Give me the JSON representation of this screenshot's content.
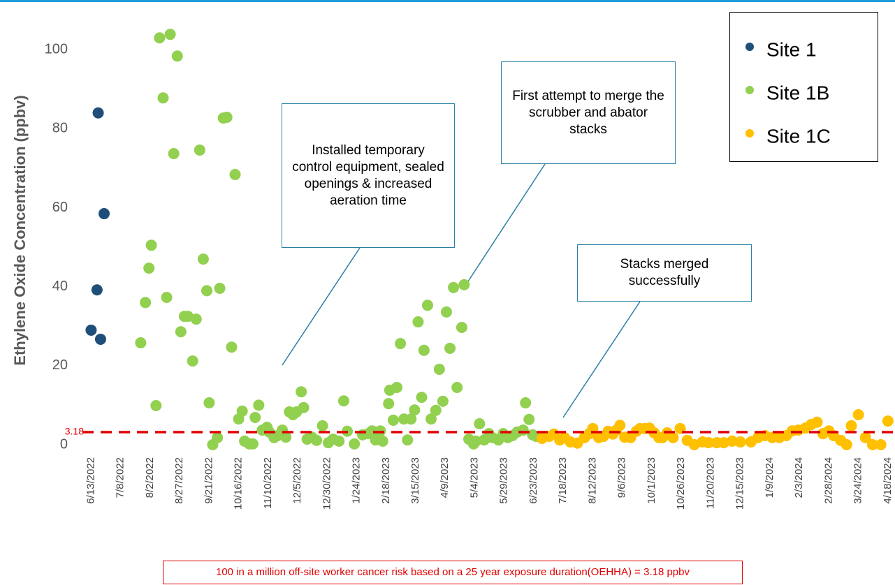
{
  "chart_data": {
    "type": "scatter",
    "y_label": "Ethylene Oxide Concentration (ppbv)",
    "xlim": [
      "5/26/2022",
      "4/24/2024"
    ],
    "xticks": [
      "6/13/2022",
      "7/8/2022",
      "8/2/2022",
      "8/27/2022",
      "9/21/2022",
      "10/16/2022",
      "11/10/2022",
      "12/5/2022",
      "12/30/2022",
      "1/24/2023",
      "2/18/2023",
      "3/15/2023",
      "4/9/2023",
      "5/4/2023",
      "5/29/2023",
      "6/23/2023",
      "7/18/2023",
      "8/12/2023",
      "9/6/2023",
      "10/1/2023",
      "10/26/2023",
      "11/20/2023",
      "12/15/2023",
      "1/9/2024",
      "2/3/2024",
      "2/28/2024",
      "3/24/2024",
      "4/18/2024"
    ],
    "ylim": [
      -1.5,
      111
    ],
    "yticks": [
      0,
      20,
      40,
      60,
      80,
      100
    ],
    "reference_line": {
      "value": 3.18,
      "color": "#e00000"
    },
    "series": [
      {
        "name": "Site 1",
        "color": "#1f4e79",
        "x": [
          "6/13/2022",
          "6/18/2022",
          "6/19/2022",
          "6/21/2022",
          "6/24/2022"
        ],
        "values": [
          29,
          39.2,
          84,
          26.7,
          58.5
        ]
      },
      {
        "name": "Site 1B",
        "color": "#92d050",
        "x": [
          "7/25/2022",
          "7/29/2022",
          "8/1/2022",
          "8/3/2022",
          "8/7/2022",
          "8/10/2022",
          "8/13/2022",
          "8/16/2022",
          "8/19/2022",
          "8/22/2022",
          "8/25/2022",
          "8/28/2022",
          "8/31/2022",
          "9/3/2022",
          "9/7/2022",
          "9/10/2022",
          "9/13/2022",
          "9/16/2022",
          "9/19/2022",
          "9/21/2022",
          "9/24/2022",
          "9/28/2022",
          "9/30/2022",
          "10/3/2022",
          "10/6/2022",
          "10/10/2022",
          "10/13/2022",
          "10/16/2022",
          "10/19/2022",
          "10/21/2022",
          "10/25/2022",
          "10/28/2022",
          "10/30/2022",
          "11/2/2022",
          "11/5/2022",
          "11/9/2022",
          "11/11/2022",
          "11/15/2022",
          "11/18/2022",
          "11/22/2022",
          "11/25/2022",
          "11/28/2022",
          "12/1/2022",
          "12/4/2022",
          "12/8/2022",
          "12/10/2022",
          "12/13/2022",
          "12/17/2022",
          "12/21/2022",
          "12/26/2022",
          "12/31/2022",
          "1/4/2023",
          "1/9/2023",
          "1/13/2023",
          "1/16/2023",
          "1/22/2023",
          "1/29/2023",
          "2/3/2023",
          "2/6/2023",
          "2/9/2023",
          "2/13/2023",
          "2/15/2023",
          "2/20/2023",
          "2/21/2023",
          "2/24/2023",
          "2/27/2023",
          "3/2/2023",
          "3/5/2023",
          "3/8/2023",
          "3/11/2023",
          "3/14/2023",
          "3/17/2023",
          "3/20/2023",
          "3/22/2023",
          "3/25/2023",
          "3/28/2023",
          "4/1/2023",
          "4/4/2023",
          "4/7/2023",
          "4/10/2023",
          "4/13/2023",
          "4/16/2023",
          "4/19/2023",
          "4/23/2023",
          "4/25/2023",
          "4/29/2023",
          "5/3/2023",
          "5/5/2023",
          "5/8/2023",
          "5/12/2023",
          "5/16/2023",
          "5/19/2023",
          "5/24/2023",
          "5/28/2023",
          "6/1/2023",
          "6/5/2023",
          "6/9/2023",
          "6/14/2023",
          "6/16/2023",
          "6/19/2023",
          "6/22/2023",
          "6/25/2023"
        ],
        "values": [
          25.8,
          36,
          44.7,
          50.5,
          9.9,
          103,
          87.8,
          37.3,
          103.9,
          73.7,
          98.4,
          28.6,
          32.5,
          32.5,
          21.2,
          31.8,
          74.6,
          47,
          39,
          10.6,
          0,
          1.8,
          39.6,
          82.7,
          82.9,
          24.7,
          68.4,
          6.5,
          8.5,
          0.9,
          0.2,
          0.2,
          6.9,
          10,
          3.7,
          4.4,
          3.2,
          1.8,
          2.3,
          3.7,
          1.9,
          8.3,
          7.6,
          8.3,
          13.4,
          9.4,
          1.4,
          1.9,
          1.1,
          4.8,
          0.5,
          1.4,
          0.9,
          11.1,
          3.4,
          0.2,
          2.5,
          2.8,
          3.5,
          1.2,
          3.5,
          0.9,
          10.4,
          13.8,
          6.2,
          14.5,
          25.6,
          6.5,
          1.2,
          6.5,
          8.8,
          31.1,
          12,
          23.9,
          35.3,
          6.5,
          8.7,
          19.1,
          11,
          33.6,
          24.4,
          39.8,
          14.5,
          29.7,
          40.5,
          1.4,
          0.2,
          0.9,
          5.3,
          1.2,
          2.8,
          1.8,
          1.2,
          2.8,
          1.8,
          2.3,
          3.2,
          3.7,
          10.6,
          6.4,
          2.5,
          2.1
        ]
      },
      {
        "name": "Site 1C",
        "color": "#ffc000",
        "x": [
          "6/30/2023",
          "7/6/2023",
          "7/10/2023",
          "7/15/2023",
          "7/19/2023",
          "7/24/2023",
          "7/30/2023",
          "8/5/2023",
          "8/9/2023",
          "8/12/2023",
          "8/17/2023",
          "8/21/2023",
          "8/25/2023",
          "8/29/2023",
          "9/1/2023",
          "9/4/2023",
          "9/8/2023",
          "9/13/2023",
          "9/18/2023",
          "9/21/2023",
          "9/25/2023",
          "9/29/2023",
          "10/3/2023",
          "10/7/2023",
          "10/10/2023",
          "10/14/2023",
          "10/19/2023",
          "10/25/2023",
          "10/31/2023",
          "11/6/2023",
          "11/13/2023",
          "11/18/2023",
          "11/25/2023",
          "12/1/2023",
          "12/8/2023",
          "12/15/2023",
          "12/24/2023",
          "12/30/2023",
          "1/5/2024",
          "1/11/2024",
          "1/17/2024",
          "1/23/2024",
          "1/28/2024",
          "2/2/2024",
          "2/8/2024",
          "2/13/2024",
          "2/18/2024",
          "2/23/2024",
          "2/28/2024",
          "3/3/2024",
          "3/9/2024",
          "3/14/2024",
          "3/18/2024",
          "3/24/2024",
          "3/30/2024",
          "4/5/2024",
          "4/12/2024",
          "4/18/2024"
        ],
        "values": [
          1.6,
          2.1,
          2.7,
          1.2,
          1.8,
          0.7,
          0.4,
          1.8,
          2.8,
          4.1,
          1.8,
          2.1,
          3.4,
          2.7,
          3.7,
          4.9,
          1.9,
          1.8,
          3.4,
          4.1,
          4.1,
          4.2,
          3,
          1.8,
          1.8,
          3,
          1.8,
          4.1,
          1.1,
          0,
          0.7,
          0.5,
          0.5,
          0.5,
          0.9,
          0.7,
          0.7,
          1.8,
          2.3,
          1.8,
          1.8,
          2.3,
          3.5,
          3.7,
          4.2,
          5.1,
          5.7,
          2.8,
          3.5,
          2.3,
          1.1,
          0,
          4.8,
          7.6,
          1.8,
          0,
          0,
          6
        ]
      }
    ],
    "annotations": [
      {
        "text": "Installed temporary control equipment, sealed openings & increased aeration time"
      },
      {
        "text": "First attempt to merge the scrubber and abator stacks"
      },
      {
        "text": "Stacks merged successfully"
      }
    ],
    "footnote": "100 in a million off-site worker cancer risk based on a 25 year exposure duration(OEHHA) = 3.18 ppbv"
  }
}
